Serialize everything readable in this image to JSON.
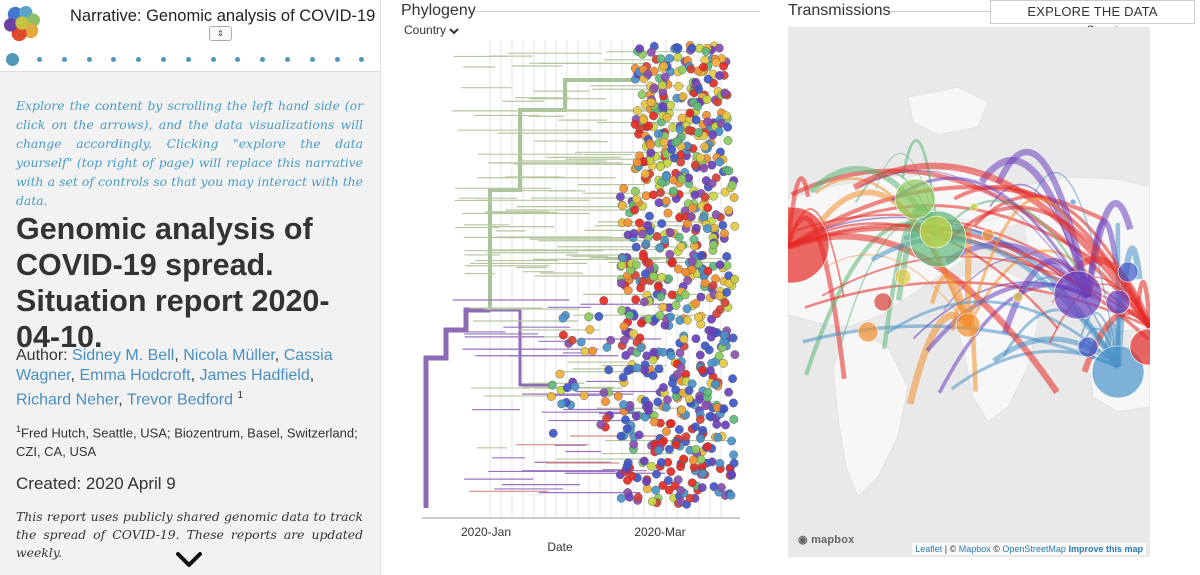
{
  "narrative": {
    "title": "Narrative: Genomic analysis of COVID-19 ...",
    "select_glyph": "⇕",
    "slide_count": 15,
    "active_slide": 0,
    "intro": "Explore the content by scrolling the left hand side (or click on the arrows), and the data visualizations will change accordingly. Clicking \"explore the data yourself\" (top right of page) will replace this narrative with a set of controls so that you may interact with the data.",
    "report_title": "Genomic analysis of COVID-19 spread. Situation report 2020-04-10.",
    "author_label": "Author:",
    "authors": [
      "Sidney M. Bell",
      "Nicola Müller",
      "Cassia Wagner",
      "Emma Hodcroft",
      "James Hadfield",
      "Richard Neher",
      "Trevor Bedford"
    ],
    "author_sup": "1",
    "affil_sup": "1",
    "affiliation": "Fred Hutch, Seattle, USA; Biozentrum, Basel, Switzerland; CZI, CA, USA",
    "created": "Created: 2020 April 9",
    "summary": "This report uses publicly shared genomic data to track the spread of COVID-19. These reports are updated weekly."
  },
  "phylogeny": {
    "title": "Phylogeny",
    "color_by": "Country",
    "x_axis_label": "Date",
    "x_ticks": [
      "2020-Jan",
      "2020-Mar"
    ]
  },
  "transmissions": {
    "title": "Transmissions",
    "color_by": "Country",
    "attribution": {
      "leaflet": "Leaflet",
      "sep1": " | © ",
      "mapbox": "Mapbox",
      "sep2": " © ",
      "osm": "OpenStreetMap",
      "improve": "Improve this map"
    },
    "mapbox_logo": "mapbox"
  },
  "explore_button": "EXPLORE THE DATA YOURSELF",
  "colors": {
    "accent": "#5097ba",
    "intro_text": "#4a9bc4",
    "country_palette": [
      "#e52a25",
      "#f28f2f",
      "#e6c943",
      "#c5d640",
      "#8ccb5d",
      "#5fb87a",
      "#4a93c9",
      "#3d57c7",
      "#6b3fbd",
      "#8a4fb0",
      "#d63f34",
      "#ecb43b"
    ]
  },
  "icons": [
    "nextstrain-logo-icon",
    "chevron-down-icon",
    "next-slide-arrow-icon",
    "mapbox-logo-icon"
  ]
}
